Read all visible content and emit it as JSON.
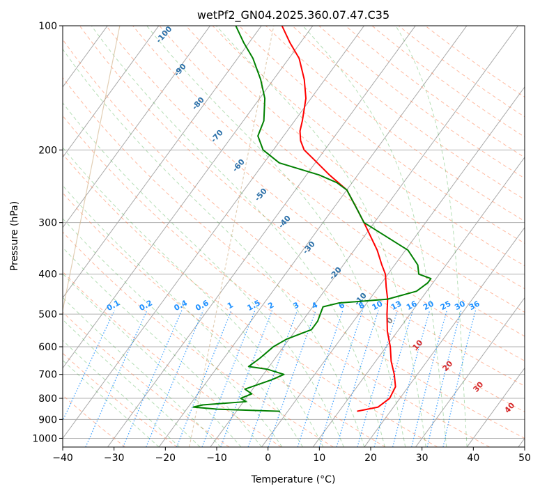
{
  "chart_data": {
    "type": "line",
    "title": "wetPf2_GN04.2025.360.07.47.C35",
    "xlabel": "Temperature (°C)",
    "ylabel": "Pressure (hPa)",
    "xlim": [
      -40,
      50
    ],
    "ylim": [
      1050,
      100
    ],
    "y_scale": "log",
    "skew": true,
    "grid": true,
    "x_ticks": [
      -40,
      -30,
      -20,
      -10,
      0,
      10,
      20,
      30,
      40,
      50
    ],
    "y_ticks": [
      100,
      200,
      300,
      400,
      500,
      600,
      700,
      800,
      900,
      1000
    ],
    "series": [
      {
        "color": "#ff0000",
        "points": [
          {
            "p": 860,
            "t": 13.5
          },
          {
            "p": 840,
            "t": 17.0
          },
          {
            "p": 800,
            "t": 18.0
          },
          {
            "p": 750,
            "t": 17.5
          },
          {
            "p": 700,
            "t": 15.5
          },
          {
            "p": 650,
            "t": 13.0
          },
          {
            "p": 600,
            "t": 10.8
          },
          {
            "p": 550,
            "t": 8.0
          },
          {
            "p": 500,
            "t": 5.5
          },
          {
            "p": 460,
            "t": 3.5
          },
          {
            "p": 430,
            "t": 1.5
          },
          {
            "p": 400,
            "t": -0.5
          },
          {
            "p": 380,
            "t": -2.5
          },
          {
            "p": 350,
            "t": -5.5
          },
          {
            "p": 300,
            "t": -12.0
          },
          {
            "p": 280,
            "t": -15.0
          },
          {
            "p": 250,
            "t": -20.0
          },
          {
            "p": 230,
            "t": -25.5
          },
          {
            "p": 210,
            "t": -31.0
          },
          {
            "p": 200,
            "t": -34.0
          },
          {
            "p": 190,
            "t": -36.0
          },
          {
            "p": 180,
            "t": -37.5
          },
          {
            "p": 170,
            "t": -38.5
          },
          {
            "p": 150,
            "t": -41.0
          },
          {
            "p": 135,
            "t": -44.0
          },
          {
            "p": 120,
            "t": -48.0
          },
          {
            "p": 110,
            "t": -52.0
          },
          {
            "p": 100,
            "t": -56.0
          }
        ]
      },
      {
        "color": "#008000",
        "points": [
          {
            "p": 860,
            "t": -1.5
          },
          {
            "p": 850,
            "t": -14.0
          },
          {
            "p": 840,
            "t": -19.0
          },
          {
            "p": 830,
            "t": -17.5
          },
          {
            "p": 815,
            "t": -9.5
          },
          {
            "p": 800,
            "t": -11.0
          },
          {
            "p": 780,
            "t": -9.5
          },
          {
            "p": 760,
            "t": -11.5
          },
          {
            "p": 740,
            "t": -9.5
          },
          {
            "p": 720,
            "t": -7.5
          },
          {
            "p": 700,
            "t": -6.0
          },
          {
            "p": 680,
            "t": -10.0
          },
          {
            "p": 670,
            "t": -14.0
          },
          {
            "p": 640,
            "t": -13.0
          },
          {
            "p": 620,
            "t": -12.5
          },
          {
            "p": 600,
            "t": -12.0
          },
          {
            "p": 575,
            "t": -10.5
          },
          {
            "p": 545,
            "t": -7.0
          },
          {
            "p": 520,
            "t": -7.0
          },
          {
            "p": 500,
            "t": -7.5
          },
          {
            "p": 480,
            "t": -8.0
          },
          {
            "p": 470,
            "t": -5.5
          },
          {
            "p": 460,
            "t": 3.5
          },
          {
            "p": 440,
            "t": 8.0
          },
          {
            "p": 420,
            "t": 9.0
          },
          {
            "p": 410,
            "t": 9.0
          },
          {
            "p": 400,
            "t": 6.0
          },
          {
            "p": 380,
            "t": 4.5
          },
          {
            "p": 350,
            "t": 0.5
          },
          {
            "p": 300,
            "t": -12.0
          },
          {
            "p": 280,
            "t": -15.0
          },
          {
            "p": 250,
            "t": -20.0
          },
          {
            "p": 240,
            "t": -23.0
          },
          {
            "p": 230,
            "t": -27.5
          },
          {
            "p": 215,
            "t": -37.0
          },
          {
            "p": 200,
            "t": -42.0
          },
          {
            "p": 185,
            "t": -45.0
          },
          {
            "p": 170,
            "t": -46.0
          },
          {
            "p": 150,
            "t": -49.0
          },
          {
            "p": 135,
            "t": -52.5
          },
          {
            "p": 120,
            "t": -57.0
          },
          {
            "p": 110,
            "t": -61.0
          },
          {
            "p": 100,
            "t": -65.0
          }
        ]
      }
    ],
    "background_lines": {
      "dry_adiabats": {
        "color": "#ff7f50"
      },
      "moist_adiabats": {
        "color": "#2ca02c",
        "labels": [
          "-100",
          "-90",
          "-80",
          "-70",
          "-60",
          "-50",
          "-40",
          "-30",
          "-20",
          "-10",
          "0",
          "10",
          "20",
          "30",
          "40"
        ]
      },
      "mixing_ratio": {
        "color": "#1e90ff",
        "labels": [
          "0.1",
          "0.2",
          "0.4",
          "0.6",
          "1",
          "1.5",
          "2",
          "3",
          "4",
          "6",
          "8",
          "10",
          "13",
          "16",
          "20",
          "25",
          "30",
          "36"
        ]
      }
    }
  }
}
